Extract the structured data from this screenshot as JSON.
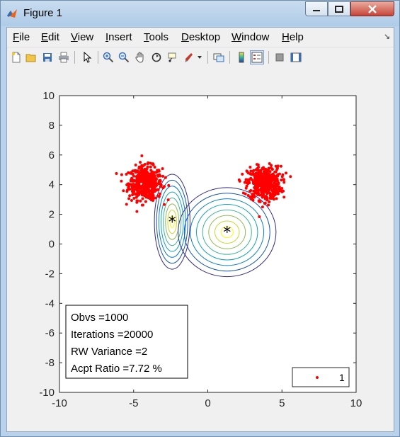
{
  "window": {
    "title": "Figure 1"
  },
  "menu": [
    "File",
    "Edit",
    "View",
    "Insert",
    "Tools",
    "Desktop",
    "Window",
    "Help"
  ],
  "menu_mnemonics": [
    "F",
    "E",
    "V",
    "I",
    "T",
    "D",
    "W",
    "H"
  ],
  "toolbar_icons": [
    "new-figure-icon",
    "open-file-icon",
    "save-icon",
    "print-icon",
    "pointer-icon",
    "zoom-in-icon",
    "zoom-out-icon",
    "pan-icon",
    "rotate-3d-icon",
    "data-cursor-icon",
    "brush-icon",
    "link-plot-icon",
    "colorbar-icon",
    "legend-icon",
    "hide-plot-tools-icon",
    "show-plot-tools-icon"
  ],
  "colors": {
    "points": "#ff0000",
    "star": "#000000",
    "axes": "#262626"
  },
  "annotation": {
    "line1": "Obvs =1000",
    "line2": "Iterations =20000",
    "line3": "RW Variance =2",
    "line4": "Acpt Ratio =7.72 %"
  },
  "legend": {
    "label": "1"
  },
  "chart_data": {
    "type": "scatter",
    "xlim": [
      -10,
      10
    ],
    "ylim": [
      -10,
      10
    ],
    "x_ticks": [
      "-10",
      "-5",
      "0",
      "5",
      "10"
    ],
    "y_ticks": [
      "10",
      "8",
      "6",
      "4",
      "2",
      "0",
      "-2",
      "-4",
      "-6",
      "-8",
      "-10"
    ],
    "point_clusters": [
      {
        "center": [
          -4.2,
          4.1
        ],
        "spread": [
          0.75,
          0.75
        ],
        "count": 500
      },
      {
        "center": [
          3.8,
          4.1
        ],
        "spread": [
          0.75,
          0.75
        ],
        "count": 500
      }
    ],
    "contours": [
      {
        "center": [
          -2.4,
          1.5
        ],
        "semi_axes_outer": [
          1.2,
          3.2
        ],
        "levels": 8,
        "cmap": "parula"
      },
      {
        "center": [
          1.3,
          0.8
        ],
        "semi_axes_outer": [
          3.3,
          3.0
        ],
        "levels": 8,
        "cmap": "parula"
      }
    ],
    "markers": [
      {
        "label": "*",
        "x": -2.4,
        "y": 1.5
      },
      {
        "label": "*",
        "x": 1.3,
        "y": 0.8
      }
    ],
    "legend_position": "bottom-right",
    "grid": false
  }
}
